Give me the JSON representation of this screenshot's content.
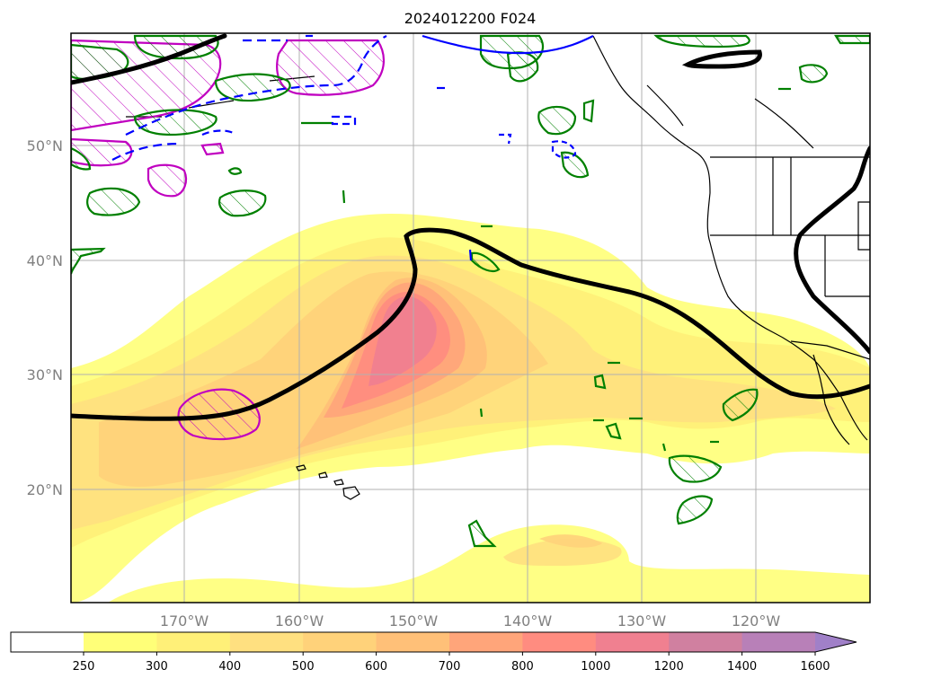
{
  "title": "2024012200 F024",
  "lat_labels": [
    "50°N",
    "40°N",
    "30°N",
    "20°N"
  ],
  "lon_labels": [
    "170°W",
    "160°W",
    "150°W",
    "140°W",
    "130°W",
    "120°W"
  ],
  "colorbar": {
    "ticks": [
      "250",
      "300",
      "400",
      "500",
      "600",
      "700",
      "800",
      "1000",
      "1200",
      "1400",
      "1600"
    ],
    "colors": [
      "#ffffff",
      "#ffff78",
      "#fff078",
      "#ffe080",
      "#ffd27a",
      "#ffc078",
      "#ffa57a",
      "#ff8c80",
      "#f08090",
      "#d080a0",
      "#b880b8",
      "#a080c8"
    ],
    "extend": "max"
  },
  "colors": {
    "contour_black": "#000000",
    "contour_green": "#008000",
    "contour_blue": "#0000ff",
    "contour_magenta": "#c000c0",
    "gridline": "#b0b0b0",
    "tick_label": "#808080"
  }
}
